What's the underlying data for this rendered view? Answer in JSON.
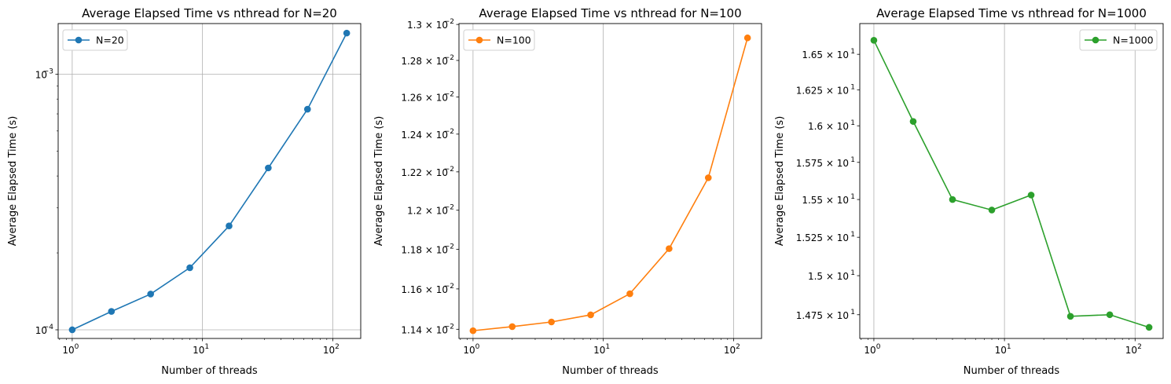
{
  "chart_data": [
    {
      "type": "line",
      "title": "Average Elapsed Time vs nthread for N=20",
      "xlabel": "Number of threads",
      "ylabel": "Average Elapsed Time (s)",
      "xscale": "log",
      "yscale": "log",
      "xlim": [
        0.78,
        164
      ],
      "ylim": [
        9.25e-05,
        0.00158
      ],
      "grid": true,
      "grid_x_ticks": [
        1,
        10,
        100
      ],
      "legend_position": "upper-left",
      "xticks": [
        {
          "value": 1,
          "base": "10",
          "exp": "0"
        },
        {
          "value": 10,
          "base": "10",
          "exp": "1"
        },
        {
          "value": 100,
          "base": "10",
          "exp": "2"
        }
      ],
      "yticks": [
        {
          "value": 0.0001,
          "base": "10",
          "exp": "−4"
        },
        {
          "value": 0.001,
          "base": "10",
          "exp": "−3"
        }
      ],
      "series": [
        {
          "name": "N=20",
          "color": "#1f77b4",
          "x": [
            1,
            2,
            4,
            8,
            16,
            32,
            64,
            128
          ],
          "y": [
            0.0001,
            0.000118,
            0.000138,
            0.000175,
            0.000255,
            0.00043,
            0.00073,
            0.00145
          ]
        }
      ]
    },
    {
      "type": "line",
      "title": "Average Elapsed Time vs nthread for N=100",
      "xlabel": "Number of threads",
      "ylabel": "Average Elapsed Time (s)",
      "xscale": "log",
      "yscale": "log",
      "xlim": [
        0.78,
        164
      ],
      "ylim": [
        0.011355,
        0.013005
      ],
      "grid": true,
      "grid_x_ticks": [
        1,
        10,
        100
      ],
      "legend_position": "upper-left",
      "xticks": [
        {
          "value": 1,
          "base": "10",
          "exp": "0"
        },
        {
          "value": 10,
          "base": "10",
          "exp": "1"
        },
        {
          "value": 100,
          "base": "10",
          "exp": "2"
        }
      ],
      "yticks": [
        {
          "value": 0.0114,
          "base": "1.14 × 10",
          "exp": "−2"
        },
        {
          "value": 0.0116,
          "base": "1.16 × 10",
          "exp": "−2"
        },
        {
          "value": 0.0118,
          "base": "1.18 × 10",
          "exp": "−2"
        },
        {
          "value": 0.012,
          "base": "1.2 × 10",
          "exp": "−2"
        },
        {
          "value": 0.0122,
          "base": "1.22 × 10",
          "exp": "−2"
        },
        {
          "value": 0.0124,
          "base": "1.24 × 10",
          "exp": "−2"
        },
        {
          "value": 0.0126,
          "base": "1.26 × 10",
          "exp": "−2"
        },
        {
          "value": 0.0128,
          "base": "1.28 × 10",
          "exp": "−2"
        },
        {
          "value": 0.013,
          "base": "1.3 × 10",
          "exp": "−2"
        }
      ],
      "series": [
        {
          "name": "N=100",
          "color": "#ff7f0e",
          "x": [
            1,
            2,
            4,
            8,
            16,
            32,
            64,
            128
          ],
          "y": [
            0.011393,
            0.011413,
            0.011436,
            0.011471,
            0.011576,
            0.011803,
            0.012169,
            0.012925
          ]
        }
      ]
    },
    {
      "type": "line",
      "title": "Average Elapsed Time vs nthread for N=1000",
      "xlabel": "Number of threads",
      "ylabel": "Average Elapsed Time (s)",
      "xscale": "log",
      "yscale": "log",
      "xlim": [
        0.78,
        164
      ],
      "ylim": [
        14.6,
        16.72
      ],
      "grid": true,
      "grid_x_ticks": [
        1,
        10,
        100
      ],
      "legend_position": "upper-right",
      "xticks": [
        {
          "value": 1,
          "base": "10",
          "exp": "0"
        },
        {
          "value": 10,
          "base": "10",
          "exp": "1"
        },
        {
          "value": 100,
          "base": "10",
          "exp": "2"
        }
      ],
      "yticks": [
        {
          "value": 14.75,
          "base": "1.475 × 10",
          "exp": "1"
        },
        {
          "value": 15.0,
          "base": "1.5 × 10",
          "exp": "1"
        },
        {
          "value": 15.25,
          "base": "1.525 × 10",
          "exp": "1"
        },
        {
          "value": 15.5,
          "base": "1.55 × 10",
          "exp": "1"
        },
        {
          "value": 15.75,
          "base": "1.575 × 10",
          "exp": "1"
        },
        {
          "value": 16.0,
          "base": "1.6 × 10",
          "exp": "1"
        },
        {
          "value": 16.25,
          "base": "1.625 × 10",
          "exp": "1"
        },
        {
          "value": 16.5,
          "base": "1.65 × 10",
          "exp": "1"
        }
      ],
      "series": [
        {
          "name": "N=1000",
          "color": "#2ca02c",
          "x": [
            1,
            2,
            4,
            8,
            16,
            32,
            64,
            128
          ],
          "y": [
            16.6,
            16.03,
            15.5,
            15.43,
            15.53,
            14.74,
            14.75,
            14.67
          ]
        }
      ]
    }
  ]
}
